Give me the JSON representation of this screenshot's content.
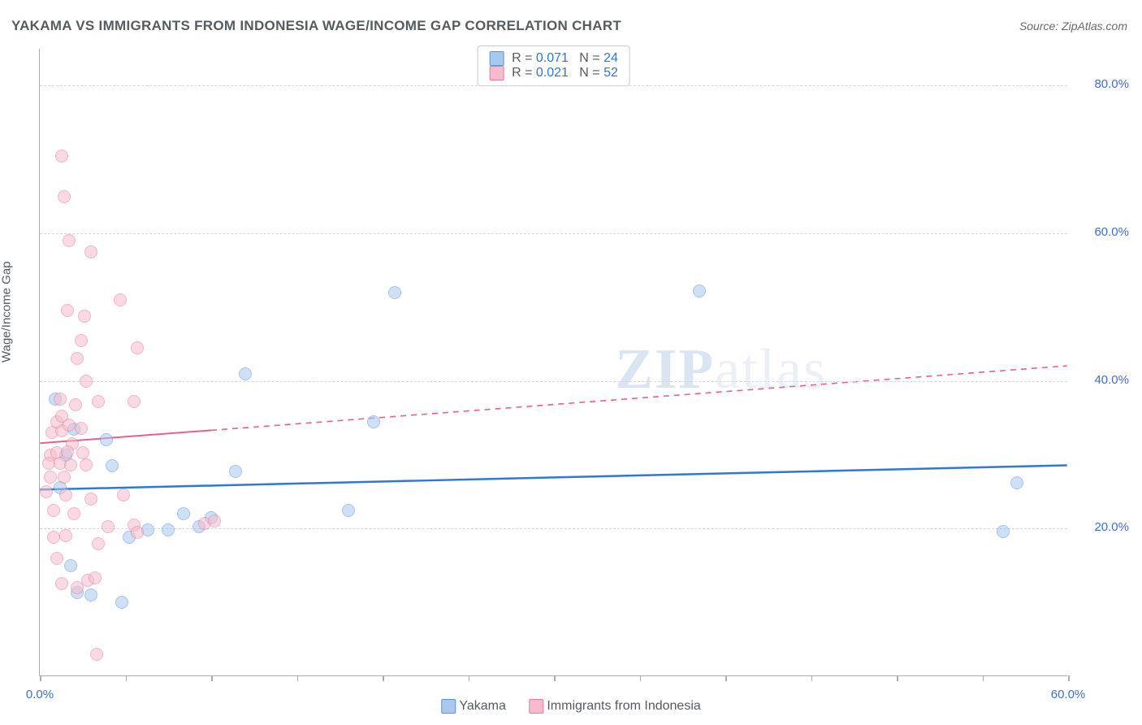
{
  "title": "YAKAMA VS IMMIGRANTS FROM INDONESIA WAGE/INCOME GAP CORRELATION CHART",
  "source": "Source: ZipAtlas.com",
  "ylabel": "Wage/Income Gap",
  "watermark_a": "ZIP",
  "watermark_b": "atlas",
  "chart": {
    "type": "scatter",
    "xlim": [
      0,
      60
    ],
    "ylim": [
      0,
      85
    ],
    "background_color": "#ffffff",
    "grid_color": "#d4d7d9",
    "axis_color": "#a8acaf",
    "x_ticks": [
      0,
      5,
      10,
      15,
      20,
      25,
      30,
      35,
      40,
      45,
      50,
      55,
      60
    ],
    "x_tick_labels": {
      "0": "0.0%",
      "60": "60.0%"
    },
    "x_label_color": "#3b6fd6",
    "y_gridlines": [
      20,
      40,
      60,
      80
    ],
    "y_tick_labels": {
      "20": "20.0%",
      "40": "40.0%",
      "60": "60.0%",
      "80": "80.0%"
    },
    "y_label_color": "#3b6fd6",
    "marker_radius": 8,
    "marker_opacity": 0.55,
    "series": [
      {
        "name": "Yakama",
        "color_fill": "#a8c8ee",
        "color_stroke": "#5e93d9",
        "trend_color": "#2f77d9",
        "trend_width": 2.5,
        "trend_y_start": 25.2,
        "trend_y_end": 28.5,
        "trend_solid_to_x": 60,
        "R": "0.071",
        "N": "24",
        "points": [
          [
            0.9,
            37.5
          ],
          [
            1.8,
            15.0
          ],
          [
            2.2,
            11.3
          ],
          [
            4.2,
            28.5
          ],
          [
            5.2,
            18.8
          ],
          [
            3.0,
            11.0
          ],
          [
            4.8,
            10.0
          ],
          [
            6.3,
            19.8
          ],
          [
            8.4,
            22.0
          ],
          [
            7.5,
            19.8
          ],
          [
            9.3,
            20.3
          ],
          [
            10.0,
            21.5
          ],
          [
            11.4,
            27.7
          ],
          [
            12.0,
            41.0
          ],
          [
            18.0,
            22.5
          ],
          [
            19.5,
            34.5
          ],
          [
            20.7,
            52.0
          ],
          [
            38.5,
            52.2
          ],
          [
            56.2,
            19.6
          ],
          [
            57.0,
            26.2
          ],
          [
            1.5,
            30.0
          ],
          [
            2.0,
            33.5
          ],
          [
            3.9,
            32.0
          ],
          [
            1.2,
            25.5
          ]
        ]
      },
      {
        "name": "Immigrants from Indonesia",
        "color_fill": "#f6bccc",
        "color_stroke": "#e77aa0",
        "trend_color": "#e95f8f",
        "trend_width": 2,
        "trend_y_start": 31.5,
        "trend_y_end": 42.0,
        "trend_solid_to_x": 10,
        "R": "0.021",
        "N": "52",
        "points": [
          [
            1.3,
            70.5
          ],
          [
            1.4,
            65.0
          ],
          [
            1.7,
            59.0
          ],
          [
            3.0,
            57.5
          ],
          [
            1.6,
            49.5
          ],
          [
            2.6,
            48.8
          ],
          [
            2.4,
            45.5
          ],
          [
            4.7,
            51.0
          ],
          [
            2.2,
            43.0
          ],
          [
            2.7,
            40.0
          ],
          [
            5.7,
            44.5
          ],
          [
            1.2,
            37.5
          ],
          [
            2.1,
            36.8
          ],
          [
            3.4,
            37.2
          ],
          [
            5.5,
            37.2
          ],
          [
            0.7,
            33.0
          ],
          [
            1.3,
            33.2
          ],
          [
            2.4,
            33.6
          ],
          [
            1.9,
            31.5
          ],
          [
            0.6,
            30.0
          ],
          [
            1.0,
            30.3
          ],
          [
            1.6,
            30.4
          ],
          [
            2.5,
            30.3
          ],
          [
            0.5,
            28.8
          ],
          [
            1.2,
            28.8
          ],
          [
            1.8,
            28.6
          ],
          [
            2.7,
            28.6
          ],
          [
            0.6,
            27.0
          ],
          [
            1.4,
            27.0
          ],
          [
            0.4,
            25.0
          ],
          [
            1.5,
            24.5
          ],
          [
            3.0,
            24.0
          ],
          [
            4.9,
            24.5
          ],
          [
            0.8,
            22.5
          ],
          [
            2.0,
            22.0
          ],
          [
            4.0,
            20.3
          ],
          [
            5.5,
            20.5
          ],
          [
            5.7,
            19.5
          ],
          [
            9.6,
            20.7
          ],
          [
            10.2,
            21.0
          ],
          [
            1.5,
            19.0
          ],
          [
            0.8,
            18.8
          ],
          [
            3.4,
            18.0
          ],
          [
            1.0,
            16.0
          ],
          [
            2.8,
            13.0
          ],
          [
            3.2,
            13.3
          ],
          [
            1.3,
            12.5
          ],
          [
            2.2,
            12.0
          ],
          [
            3.3,
            3.0
          ],
          [
            1.0,
            34.5
          ],
          [
            1.7,
            34.0
          ],
          [
            1.3,
            35.2
          ]
        ]
      }
    ],
    "legend_top": {
      "label_R": "R =",
      "label_N": "N =",
      "value_color": "#2f77d9"
    },
    "legend_bottom": {
      "series1_label": "Yakama",
      "series2_label": "Immigrants from Indonesia"
    }
  }
}
